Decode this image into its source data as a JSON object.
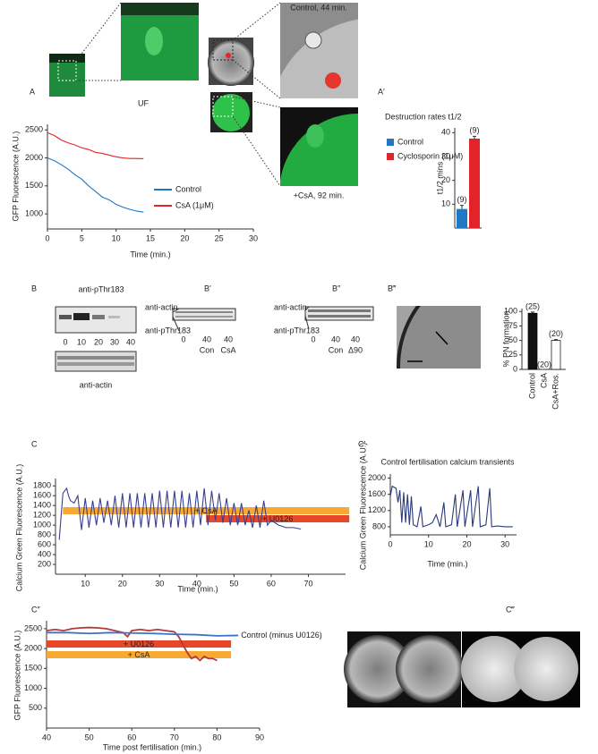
{
  "panel_labels": [
    "A",
    "A′",
    "B",
    "B′",
    "B″",
    "B‴",
    "C",
    "C′",
    "C″",
    "C‴"
  ],
  "images": {
    "uf_label": "UF",
    "control_label": "Control, 44 min.",
    "csa_label": "+CsA, 92 min."
  },
  "blots": {
    "B": {
      "top_label": "anti-pThr183",
      "lanes": [
        0,
        10,
        20,
        30,
        40
      ],
      "bottom_label": "anti-actin"
    },
    "B_prime": {
      "labels": [
        "anti-actin",
        "anti-pThr183"
      ],
      "lanes": [
        0,
        40,
        40
      ],
      "conditions": [
        "Con",
        "CsA"
      ]
    },
    "B_double_prime": {
      "labels": [
        "anti-actin",
        "anti-pThr183"
      ],
      "lanes": [
        0,
        40,
        40
      ],
      "conditions": [
        "Con",
        "Δ90"
      ]
    }
  },
  "chart_data": [
    {
      "type": "line",
      "ylabel": "GFP Fluorescence (A.U.)",
      "xlabel": "Time (min.)",
      "xlim": [
        0,
        30
      ],
      "xticks": [
        0,
        5,
        10,
        15,
        20,
        25,
        30
      ],
      "ylim": [
        730,
        2600
      ],
      "yticks": [
        1000,
        1500,
        2000,
        2500
      ],
      "legend": "right",
      "series": [
        {
          "name": "Control",
          "color": "#1f78c1",
          "x": [
            0,
            1,
            2,
            3,
            4,
            5,
            6,
            7,
            8,
            9,
            10,
            11,
            12,
            13,
            14
          ],
          "values": [
            2000,
            1950,
            1880,
            1800,
            1700,
            1620,
            1500,
            1400,
            1300,
            1250,
            1170,
            1120,
            1080,
            1050,
            1030
          ]
        },
        {
          "name": "CsA (1μM)",
          "color": "#e3232a",
          "x": [
            0,
            1,
            2,
            3,
            4,
            5,
            6,
            7,
            8,
            9,
            10,
            11,
            12,
            13,
            14
          ],
          "values": [
            2450,
            2400,
            2320,
            2270,
            2230,
            2180,
            2150,
            2100,
            2080,
            2050,
            2020,
            2000,
            1990,
            1990,
            1985
          ]
        }
      ]
    },
    {
      "type": "bar",
      "title": "Destruction rates t1/2",
      "ylabel": "t1/2 mins",
      "legend": "left",
      "categories": [
        "Control",
        "Cyclosporin (1μM)"
      ],
      "values": [
        8,
        37.5
      ],
      "errors": [
        1.5,
        1
      ],
      "n_labels": [
        "(9)",
        "(9)"
      ],
      "colors": [
        "#1f78c1",
        "#e3232a"
      ],
      "ylim": [
        0,
        42
      ],
      "yticks": [
        10,
        20,
        30,
        40
      ]
    },
    {
      "type": "bar",
      "ylabel": "% PN formation",
      "categories": [
        "Control",
        "CsA",
        "CsA+Ros."
      ],
      "values": [
        97,
        0,
        50
      ],
      "errors": [
        2,
        0,
        1.5
      ],
      "n_labels": [
        "(25)",
        "(20)",
        "(20)"
      ],
      "colors": [
        "#111111",
        "#111111",
        "#ffffff"
      ],
      "edgecolor": "#000000",
      "ylim": [
        0,
        105
      ],
      "yticks": [
        0,
        25,
        50,
        75,
        100
      ]
    },
    {
      "type": "line",
      "ylabel": "Calcium Green Fluorescence (A.U.)",
      "xlabel": "Time (min.)",
      "xlim": [
        2,
        80
      ],
      "xticks": [
        10,
        20,
        30,
        40,
        50,
        60,
        70
      ],
      "ylim": [
        0,
        1950
      ],
      "yticks": [
        200,
        400,
        600,
        800,
        1000,
        1200,
        1400,
        1600,
        1800
      ],
      "series": [
        {
          "color": "#3a3f8f",
          "x": [
            3,
            4,
            4.5,
            5,
            5.5,
            6,
            7,
            8,
            9,
            10,
            11,
            12,
            13,
            14,
            15,
            16,
            17,
            18,
            19,
            20,
            21,
            22,
            23,
            24,
            25,
            26,
            27,
            28,
            29,
            30,
            31,
            32,
            33,
            34,
            35,
            36,
            37,
            38,
            39,
            40,
            41,
            42,
            43,
            44,
            45,
            46,
            47,
            48,
            49,
            50,
            51,
            52,
            53,
            54,
            55,
            56,
            57,
            58,
            59,
            60,
            62,
            64,
            66,
            68
          ],
          "values": [
            700,
            1650,
            1700,
            1750,
            1600,
            1500,
            1450,
            1600,
            900,
            1550,
            950,
            1500,
            1000,
            1550,
            1050,
            1500,
            1000,
            1600,
            950,
            1650,
            950,
            1650,
            950,
            1650,
            950,
            1650,
            950,
            1650,
            950,
            1700,
            950,
            1700,
            950,
            1700,
            950,
            1700,
            950,
            1650,
            950,
            1700,
            1000,
            1750,
            1000,
            1700,
            1100,
            1650,
            1050,
            1550,
            1000,
            1450,
            1000,
            1450,
            1000,
            1300,
            950,
            1400,
            950,
            1500,
            1000,
            1100,
            1000,
            950,
            950,
            920
          ]
        }
      ],
      "annotation_bars": [
        {
          "label": "+ CsA",
          "start": 4,
          "end": 81,
          "color": "#f7a934"
        },
        {
          "label": "+ U0126",
          "start": 42.5,
          "end": 81,
          "color": "#e8482a"
        }
      ]
    },
    {
      "type": "line",
      "title": "Control fertilisation calcium transients",
      "ylabel": "Calcium Green Fluorescence (A.U.)",
      "xlabel": "Time (min.)",
      "xlim": [
        0,
        33
      ],
      "xticks": [
        0,
        10,
        20,
        30
      ],
      "ylim": [
        600,
        2100
      ],
      "yticks": [
        800,
        1200,
        1600,
        2000
      ],
      "series": [
        {
          "color": "#2a3a7a",
          "x": [
            0,
            0.5,
            1.5,
            2,
            2.5,
            3,
            3.5,
            4,
            4.5,
            5,
            5.5,
            6,
            7,
            8,
            8.5,
            10,
            11,
            12,
            13,
            14,
            14.5,
            16,
            17,
            17.5,
            19,
            19.5,
            21,
            21.5,
            23,
            23.5,
            25,
            26,
            26.5,
            28,
            30,
            32
          ],
          "values": [
            1550,
            1800,
            1750,
            1400,
            1700,
            900,
            1650,
            900,
            1600,
            850,
            1550,
            850,
            800,
            1300,
            800,
            850,
            900,
            1100,
            800,
            1400,
            800,
            850,
            1600,
            800,
            1700,
            800,
            1700,
            800,
            1800,
            800,
            850,
            1750,
            800,
            820,
            800,
            800
          ]
        }
      ]
    },
    {
      "type": "line",
      "ylabel": "GFP Fluorescence (A.U.)",
      "xlabel": "Time post fertilisation (min.)",
      "legend": "direct",
      "xlim": [
        40,
        90
      ],
      "xticks": [
        40,
        50,
        60,
        70,
        80,
        90
      ],
      "ylim": [
        0,
        2700
      ],
      "yticks": [
        500,
        1000,
        1500,
        2000,
        2500
      ],
      "series": [
        {
          "color": "#b23a3a",
          "x": [
            40,
            42,
            44,
            46,
            48,
            50,
            52,
            54,
            56,
            58,
            59,
            60,
            62,
            64,
            66,
            68,
            70,
            71,
            72,
            73,
            74,
            75,
            76,
            77,
            78,
            79,
            80
          ],
          "values": [
            2450,
            2480,
            2450,
            2500,
            2520,
            2530,
            2520,
            2500,
            2450,
            2400,
            2300,
            2450,
            2480,
            2450,
            2480,
            2450,
            2420,
            2300,
            2100,
            1900,
            1750,
            1800,
            1700,
            1800,
            1750,
            1750,
            1700
          ]
        },
        {
          "name": "Control (minus U0126)",
          "color": "#3b73c8",
          "x": [
            40,
            45,
            50,
            55,
            60,
            65,
            70,
            75,
            80,
            85
          ],
          "values": [
            2400,
            2400,
            2380,
            2400,
            2390,
            2380,
            2360,
            2350,
            2320,
            2330
          ]
        }
      ],
      "annotation_bars": [
        {
          "label": "+ U0126",
          "start": 40,
          "end": 83.3,
          "color": "#e8482a"
        },
        {
          "label": "+ CsA",
          "start": 40,
          "end": 83.3,
          "color": "#f7a934"
        }
      ]
    }
  ]
}
